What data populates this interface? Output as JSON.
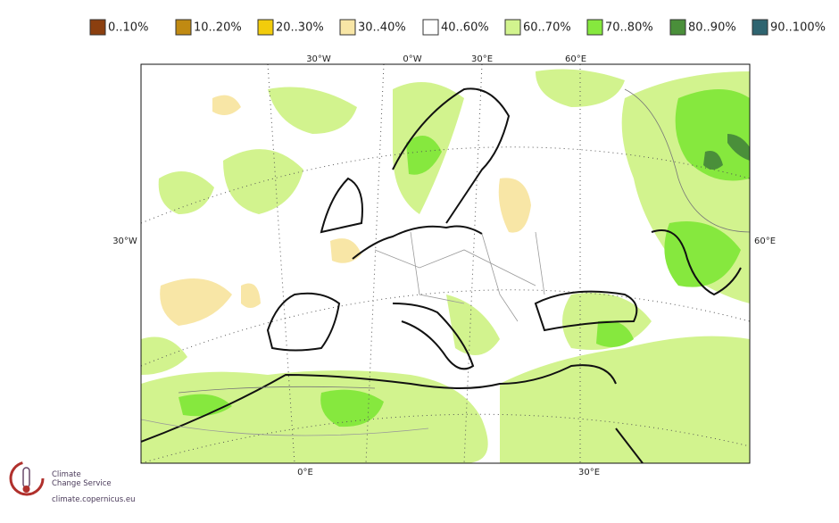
{
  "legend": [
    {
      "label": "0..10%",
      "color": "#8b3f0f"
    },
    {
      "label": "10..20%",
      "color": "#c08a12"
    },
    {
      "label": "20..30%",
      "color": "#f2cc0c"
    },
    {
      "label": "30..40%",
      "color": "#f8e6a6"
    },
    {
      "label": "40..60%",
      "color": "#ffffff"
    },
    {
      "label": "60..70%",
      "color": "#d2f38e"
    },
    {
      "label": "70..80%",
      "color": "#86e83e"
    },
    {
      "label": "80..90%",
      "color": "#4a8f3a"
    },
    {
      "label": "90..100%",
      "color": "#2e6470"
    }
  ],
  "graticule_labels": {
    "top": [
      "30°W",
      "0°W",
      "30°E",
      "60°E"
    ],
    "left": [
      "30°W"
    ],
    "right": [
      "60°E"
    ],
    "bottom": [
      "0°E",
      "30°E"
    ]
  },
  "logo": {
    "line1": "Climate",
    "line2": "Change Service",
    "url": "climate.copernicus.eu"
  }
}
